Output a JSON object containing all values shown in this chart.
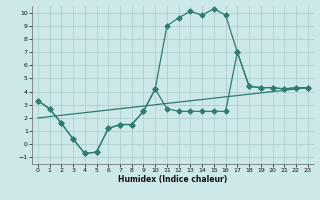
{
  "xlabel": "Humidex (Indice chaleur)",
  "bg_color": "#cce8e8",
  "grid_color": "#aacccc",
  "line_color": "#2e7d6e",
  "xlim": [
    -0.5,
    23.5
  ],
  "ylim": [
    -1.5,
    10.5
  ],
  "yticks": [
    -1,
    0,
    1,
    2,
    3,
    4,
    5,
    6,
    7,
    8,
    9,
    10
  ],
  "xticks": [
    0,
    1,
    2,
    3,
    4,
    5,
    6,
    7,
    8,
    9,
    10,
    11,
    12,
    13,
    14,
    15,
    16,
    17,
    18,
    19,
    20,
    21,
    22,
    23
  ],
  "line1_x": [
    0,
    1,
    2,
    3,
    4,
    5,
    6,
    7,
    8,
    9,
    10,
    11,
    12,
    13,
    14,
    15,
    16,
    17,
    18,
    19,
    20,
    21,
    22,
    23
  ],
  "line1_y": [
    3.3,
    2.7,
    1.6,
    0.4,
    -0.7,
    -0.6,
    1.2,
    1.5,
    1.5,
    2.5,
    4.2,
    9.0,
    9.6,
    10.1,
    9.8,
    10.3,
    9.8,
    7.0,
    4.4,
    4.3,
    4.3,
    4.2,
    4.3,
    4.3
  ],
  "line2_x": [
    0,
    1,
    2,
    3,
    4,
    5,
    6,
    7,
    8,
    9,
    10,
    11,
    12,
    13,
    14,
    15,
    16,
    17,
    18,
    19,
    20,
    21,
    22,
    23
  ],
  "line2_y": [
    3.3,
    2.7,
    1.6,
    0.4,
    -0.7,
    -0.6,
    1.2,
    1.5,
    1.5,
    2.5,
    4.2,
    2.7,
    2.5,
    2.5,
    2.5,
    2.5,
    2.5,
    7.0,
    4.4,
    4.3,
    4.3,
    4.2,
    4.3,
    4.3
  ],
  "line3_x": [
    0,
    23
  ],
  "line3_y": [
    2.0,
    4.3
  ]
}
